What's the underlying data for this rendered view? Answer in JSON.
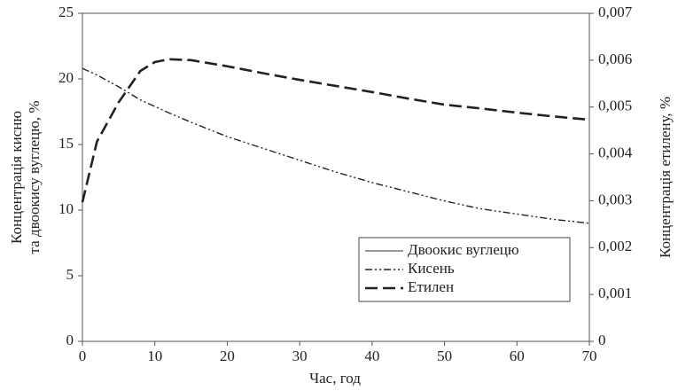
{
  "chart_data": {
    "type": "line",
    "xlabel": "Час, год",
    "ylabel": [
      "Концентрація кисню",
      "та двоокису вуглецю, %"
    ],
    "y2label": "Концентрація етилену, %",
    "x": [
      0,
      2,
      5,
      8,
      10,
      12,
      15,
      20,
      25,
      30,
      35,
      40,
      45,
      50,
      55,
      60,
      65,
      70
    ],
    "xlim": [
      0,
      70
    ],
    "xticks": [
      0,
      10,
      20,
      30,
      40,
      50,
      60,
      70
    ],
    "ylim": [
      0,
      25
    ],
    "yticks": [
      0,
      5,
      10,
      15,
      20,
      25
    ],
    "y2lim": [
      0,
      0.007
    ],
    "y2ticks": [
      0,
      {
        "value": 0.001,
        "label": "0,001"
      },
      {
        "value": 0.002,
        "label": "0,002"
      },
      {
        "value": 0.003,
        "label": "0,003"
      },
      {
        "value": 0.004,
        "label": "0,004"
      },
      {
        "value": 0.005,
        "label": "0,005"
      },
      {
        "value": 0.006,
        "label": "0,006"
      },
      {
        "value": 0.007,
        "label": "0,007"
      }
    ],
    "legend": "lower right",
    "series": [
      {
        "name": "Двоокис вуглецю",
        "color": "#333",
        "style": "solid",
        "values": [
          null,
          null,
          null,
          null,
          null,
          null,
          null,
          null,
          null,
          null,
          null,
          null,
          null,
          null,
          null,
          null,
          null,
          null
        ]
      },
      {
        "name": "Кисень",
        "color": "#222",
        "style": "dashdotdot",
        "values": [
          20.8,
          20.3,
          19.4,
          18.4,
          17.9,
          17.4,
          16.7,
          15.6,
          14.7,
          13.8,
          12.9,
          12.1,
          11.4,
          10.7,
          10.1,
          9.7,
          9.3,
          9.0
        ]
      },
      {
        "name": "Етилен",
        "color": "#222",
        "style": "dashed",
        "axis": "y2",
        "values": [
          0.00297,
          0.00426,
          0.0051,
          0.00577,
          0.00596,
          0.00602,
          0.006,
          0.00587,
          0.00572,
          0.00558,
          0.00545,
          0.00532,
          0.00518,
          0.00505,
          0.00497,
          0.00488,
          0.0048,
          0.00473
        ]
      }
    ]
  }
}
